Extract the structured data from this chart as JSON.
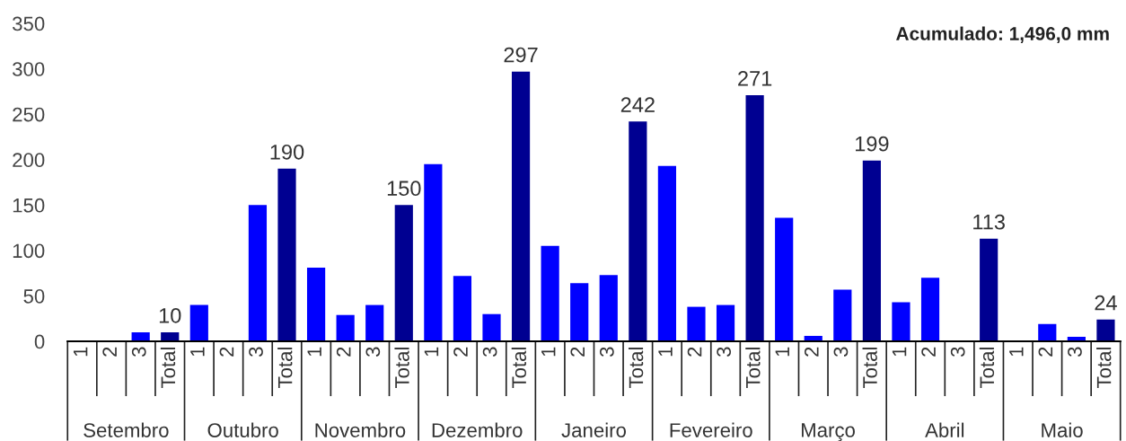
{
  "chart_data": {
    "type": "bar",
    "categories": [
      "1",
      "2",
      "3",
      "Total",
      "1",
      "2",
      "3",
      "Total",
      "1",
      "2",
      "3",
      "Total",
      "1",
      "2",
      "3",
      "Total",
      "1",
      "2",
      "3",
      "Total",
      "1",
      "2",
      "3",
      "Total",
      "1",
      "2",
      "3",
      "Total",
      "1",
      "2",
      "3",
      "Total",
      "1",
      "2",
      "3",
      "Total"
    ],
    "values": [
      0,
      0,
      10,
      10,
      40,
      0,
      150,
      190,
      81,
      29,
      40,
      150,
      195,
      72,
      30,
      297,
      105,
      64,
      73,
      242,
      193,
      38,
      40,
      271,
      136,
      6,
      57,
      199,
      43,
      70,
      0,
      113,
      0,
      19,
      5,
      24
    ],
    "colors": [
      "#0000ff",
      "#0000ff",
      "#0000ff",
      "#000091",
      "#0000ff",
      "#0000ff",
      "#0000ff",
      "#000091",
      "#0000ff",
      "#0000ff",
      "#0000ff",
      "#000091",
      "#0000ff",
      "#0000ff",
      "#0000ff",
      "#000091",
      "#0000ff",
      "#0000ff",
      "#0000ff",
      "#000091",
      "#0000ff",
      "#0000ff",
      "#0000ff",
      "#000091",
      "#0000ff",
      "#0000ff",
      "#0000ff",
      "#000091",
      "#0000ff",
      "#0000ff",
      "#0000ff",
      "#000091",
      "#0000ff",
      "#0000ff",
      "#0000ff",
      "#000091"
    ],
    "value_labels": [
      null,
      null,
      null,
      "10",
      null,
      null,
      null,
      "190",
      null,
      null,
      null,
      "150",
      null,
      null,
      null,
      "297",
      null,
      null,
      null,
      "242",
      null,
      null,
      null,
      "271",
      null,
      null,
      null,
      "199",
      null,
      null,
      null,
      "113",
      null,
      null,
      null,
      "24"
    ],
    "ylim": [
      0,
      350
    ],
    "yticks": [
      0,
      50,
      100,
      150,
      200,
      250,
      300,
      350
    ],
    "grid": false,
    "legend": false,
    "annotations": [
      "Acumulado: 1,496,0 mm",
      "Setembro",
      "Outubro",
      "Novembro",
      "Dezembro",
      "Janeiro",
      "Fevereiro",
      "Março",
      "Abril",
      "Maio"
    ]
  }
}
